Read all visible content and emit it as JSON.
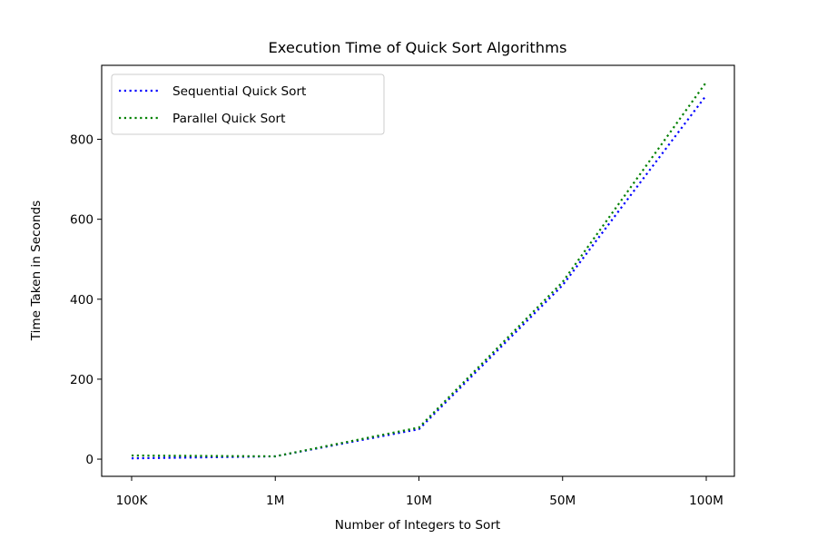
{
  "chart_data": {
    "type": "line",
    "title": "Execution Time of Quick Sort Algorithms",
    "xlabel": "Number of Integers to Sort",
    "ylabel": "Time Taken in Seconds",
    "categories": [
      "100K",
      "1M",
      "10M",
      "50M",
      "100M"
    ],
    "ylim": [
      -43,
      985
    ],
    "yticks": [
      0,
      200,
      400,
      600,
      800
    ],
    "grid": false,
    "legend_position": "upper-left",
    "line_style": "dotted",
    "series": [
      {
        "name": "Sequential Quick Sort",
        "color": "#0000ff",
        "values": [
          2,
          7,
          75,
          435,
          910
        ]
      },
      {
        "name": "Parallel Quick Sort",
        "color": "#008000",
        "values": [
          9,
          7,
          79,
          443,
          943
        ]
      }
    ]
  }
}
